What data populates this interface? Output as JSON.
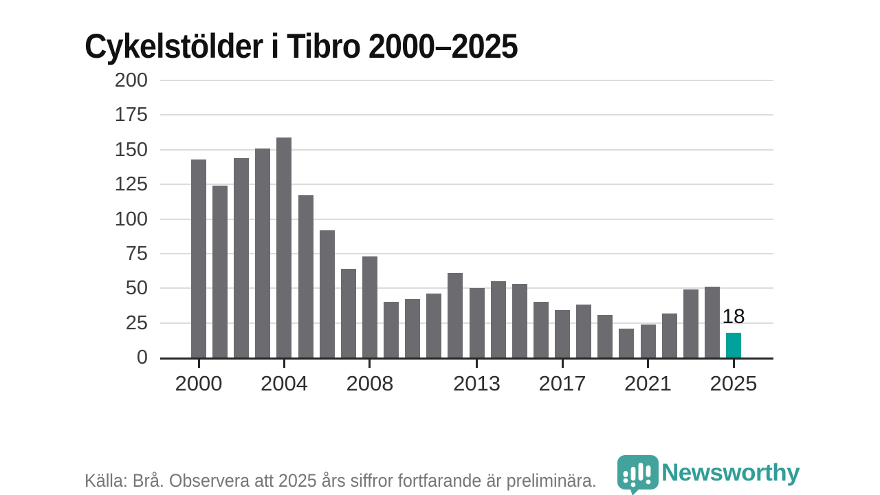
{
  "title": "Cykelstölder i Tibro 2000–2025",
  "footer": {
    "source_note": "Källa: Brå. Observera att 2025 års siffror fortfarande är preliminära."
  },
  "branding": {
    "wordmark": "Newsworthy",
    "logo_icon": "newsworthy-pin-barchart-icon"
  },
  "annotation": {
    "year": 2025,
    "label": "18"
  },
  "colors": {
    "bar": "#6b6b70",
    "highlight": "#00a29a",
    "grid": "#dcdcdc",
    "axis": "#262626",
    "tick_label": "#3b3b3b",
    "title": "#111111",
    "footer_text": "#76767a",
    "brand_teal": "#2f9e97",
    "logo_fill": "#42a39c"
  },
  "chart_data": {
    "type": "bar",
    "title": "Cykelstölder i Tibro 2000–2025",
    "xlabel": "",
    "ylabel": "",
    "x": [
      2000,
      2001,
      2002,
      2003,
      2004,
      2005,
      2006,
      2007,
      2008,
      2009,
      2010,
      2011,
      2012,
      2013,
      2014,
      2015,
      2016,
      2017,
      2018,
      2019,
      2020,
      2021,
      2022,
      2023,
      2024,
      2025
    ],
    "values": [
      143,
      124,
      144,
      151,
      159,
      117,
      92,
      64,
      73,
      40,
      42,
      46,
      61,
      50,
      55,
      53,
      40,
      34,
      38,
      31,
      21,
      24,
      32,
      49,
      51,
      18
    ],
    "ylim": [
      0,
      200
    ],
    "yticks": [
      0,
      25,
      50,
      75,
      100,
      125,
      150,
      175,
      200
    ],
    "xticks": [
      2000,
      2004,
      2008,
      2013,
      2017,
      2021,
      2025
    ],
    "grid": true,
    "legend": "none",
    "highlight_x": 2025,
    "data_label": {
      "x": 2025,
      "text": "18"
    }
  }
}
